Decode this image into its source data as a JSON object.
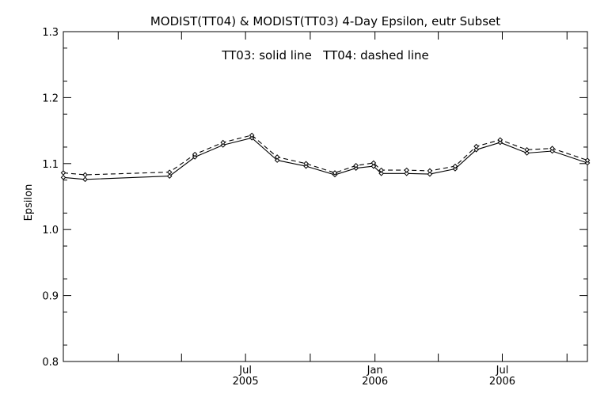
{
  "chart_data": {
    "type": "line",
    "title": "MODIST(TT04) & MODIST(TT03) 4-Day Epsilon, eutr Subset",
    "annotation": "TT03: solid line   TT04: dashed line",
    "ylabel": "Epsilon",
    "xlabel": "",
    "ylim": [
      0.8,
      1.3
    ],
    "yticks": [
      "0.8",
      "0.9",
      "1.0",
      "1.1",
      "1.2",
      "1.3"
    ],
    "xlim": [
      "2004-10-15",
      "2006-10-30"
    ],
    "xticks": [
      {
        "date": "2005-07-01",
        "month": "Jul",
        "year": "2005"
      },
      {
        "date": "2006-01-01",
        "month": "Jan",
        "year": "2006"
      },
      {
        "date": "2006-07-01",
        "month": "Jul",
        "year": "2006"
      }
    ],
    "x": [
      "2004-10-15",
      "2004-11-15",
      "2005-03-15",
      "2005-04-20",
      "2005-05-30",
      "2005-07-10",
      "2005-08-15",
      "2005-09-25",
      "2005-11-05",
      "2005-12-05",
      "2005-12-30",
      "2006-01-10",
      "2006-02-15",
      "2006-03-20",
      "2006-04-25",
      "2006-05-25",
      "2006-06-28",
      "2006-08-05",
      "2006-09-10",
      "2006-10-30"
    ],
    "series": [
      {
        "name": "TT03",
        "style": "solid",
        "values": [
          1.079,
          1.076,
          1.081,
          1.11,
          1.128,
          1.139,
          1.105,
          1.096,
          1.083,
          1.093,
          1.096,
          1.085,
          1.085,
          1.084,
          1.092,
          1.121,
          1.132,
          1.116,
          1.119,
          1.101
        ]
      },
      {
        "name": "TT04",
        "style": "dashed",
        "values": [
          1.086,
          1.083,
          1.087,
          1.114,
          1.132,
          1.143,
          1.11,
          1.1,
          1.086,
          1.097,
          1.101,
          1.09,
          1.09,
          1.089,
          1.096,
          1.126,
          1.136,
          1.121,
          1.123,
          1.105
        ]
      }
    ],
    "line_color": "#000000",
    "background": "#ffffff",
    "grid": false
  }
}
